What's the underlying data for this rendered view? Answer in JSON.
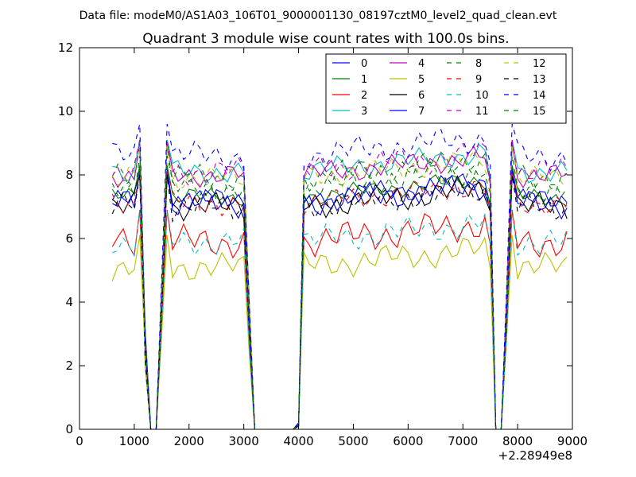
{
  "chart_data": {
    "type": "line",
    "suptitle": "Data file: modeM0/AS1A03_106T01_9000001130_08197cztM0_level2_quad_clean.evt",
    "title": "Quadrant 3 module wise count rates with 100.0s bins.",
    "xlabel": "",
    "ylabel": "",
    "x_offset_label": "+2.28949e8",
    "xlim": [
      0,
      9000
    ],
    "ylim": [
      0,
      12
    ],
    "xticks": [
      0,
      1000,
      2000,
      3000,
      4000,
      5000,
      6000,
      7000,
      8000,
      9000
    ],
    "yticks": [
      0,
      2,
      4,
      6,
      8,
      10,
      12
    ],
    "grid": false,
    "legend_position": "top-right",
    "legend_columns": 4,
    "x": [
      600,
      700,
      800,
      900,
      1000,
      1100,
      1200,
      1300,
      1400,
      1500,
      1600,
      1700,
      1800,
      1900,
      2000,
      2100,
      2200,
      2300,
      2400,
      2500,
      2600,
      2700,
      2800,
      2900,
      3000,
      3100,
      3200,
      3300,
      3400,
      3500,
      3600,
      3700,
      3800,
      3900,
      4000,
      4100,
      4200,
      4300,
      4400,
      4500,
      4600,
      4700,
      4800,
      4900,
      5000,
      5100,
      5200,
      5300,
      5400,
      5500,
      5600,
      5700,
      5800,
      5900,
      6000,
      6100,
      6200,
      6300,
      6400,
      6500,
      6600,
      6700,
      6800,
      6900,
      7000,
      7100,
      7200,
      7300,
      7400,
      7500,
      7600,
      7700,
      7800,
      7900,
      8000,
      8100,
      8200,
      8300,
      8400,
      8500,
      8600,
      8700,
      8800,
      8900
    ],
    "series": [
      {
        "name": "0",
        "color": "#0000ff",
        "dash": "solid",
        "base": 7.2,
        "amp": 0.25
      },
      {
        "name": "1",
        "color": "#008000",
        "dash": "solid",
        "base": 7.3,
        "amp": 0.2
      },
      {
        "name": "2",
        "color": "#ff0000",
        "dash": "solid",
        "base": 5.9,
        "amp": 0.35
      },
      {
        "name": "3",
        "color": "#00bfbf",
        "dash": "solid",
        "base": 8.1,
        "amp": 0.25
      },
      {
        "name": "4",
        "color": "#bf00bf",
        "dash": "solid",
        "base": 8.0,
        "amp": 0.25
      },
      {
        "name": "5",
        "color": "#bfbf00",
        "dash": "solid",
        "base": 5.1,
        "amp": 0.3
      },
      {
        "name": "6",
        "color": "#000000",
        "dash": "solid",
        "base": 7.0,
        "amp": 0.3
      },
      {
        "name": "7",
        "color": "#0000ff",
        "dash": "solid",
        "base": 7.1,
        "amp": 0.3
      },
      {
        "name": "8",
        "color": "#008000",
        "dash": "dashed",
        "base": 7.9,
        "amp": 0.3
      },
      {
        "name": "9",
        "color": "#ff0000",
        "dash": "dashed",
        "base": 7.1,
        "amp": 0.25
      },
      {
        "name": "10",
        "color": "#00bfbf",
        "dash": "dashed",
        "base": 5.9,
        "amp": 0.3
      },
      {
        "name": "11",
        "color": "#bf00bf",
        "dash": "dashed",
        "base": 8.1,
        "amp": 0.3
      },
      {
        "name": "12",
        "color": "#bfbf00",
        "dash": "dashed",
        "base": 7.9,
        "amp": 0.25
      },
      {
        "name": "13",
        "color": "#000000",
        "dash": "dashed",
        "base": 7.0,
        "amp": 0.3
      },
      {
        "name": "14",
        "color": "#0000ff",
        "dash": "dashed",
        "base": 8.6,
        "amp": 0.3
      },
      {
        "name": "15",
        "color": "#008000",
        "dash": "dashed",
        "base": 7.6,
        "amp": 0.3
      }
    ]
  }
}
